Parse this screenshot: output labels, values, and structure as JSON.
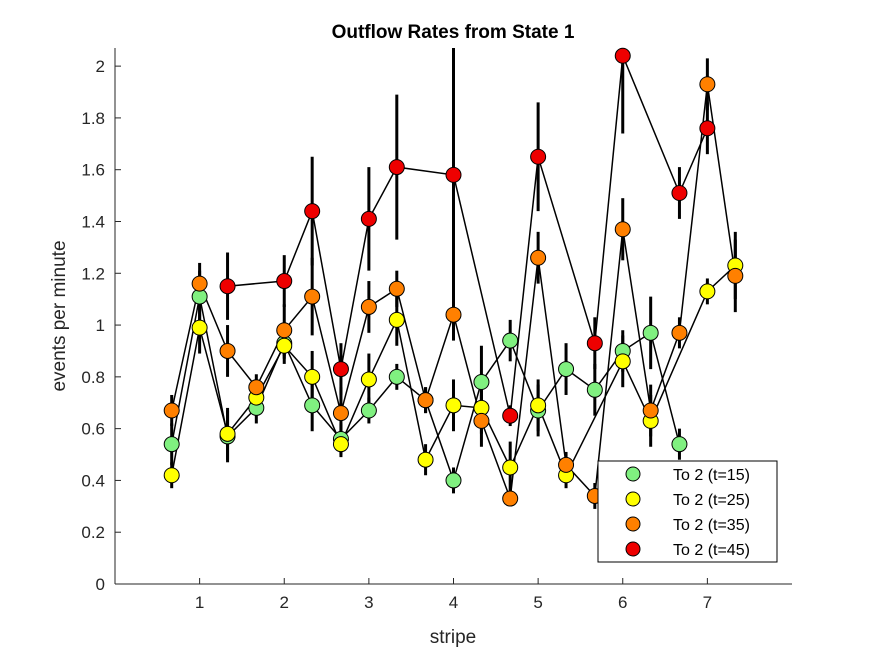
{
  "chart_data": {
    "type": "scatter",
    "title": "Outflow Rates from State 1",
    "xlabel": "stripe",
    "ylabel": "events per minute",
    "xlim": [
      0,
      8
    ],
    "ylim": [
      0,
      2.07
    ],
    "xticks": [
      "1",
      "2",
      "3",
      "4",
      "5",
      "6",
      "7"
    ],
    "yticks": [
      "0",
      "0.2",
      "0.4",
      "0.6",
      "0.8",
      "1",
      "1.2",
      "1.4",
      "1.6",
      "1.8",
      "2"
    ],
    "legend_position": "bottom-right",
    "grid": false,
    "series": [
      {
        "name": "To 2 (t=15)",
        "color": "#80f080",
        "points": [
          {
            "x": 0.67,
            "y": 0.54,
            "err": 0.08
          },
          {
            "x": 1.0,
            "y": 1.11,
            "err": 0.1
          },
          {
            "x": 1.33,
            "y": 0.57,
            "err": 0.1
          },
          {
            "x": 1.67,
            "y": 0.68,
            "err": 0.06
          },
          {
            "x": 2.0,
            "y": 0.93,
            "err": 0.08
          },
          {
            "x": 2.33,
            "y": 0.69,
            "err": 0.1
          },
          {
            "x": 2.67,
            "y": 0.56,
            "err": 0.06
          },
          {
            "x": 3.0,
            "y": 0.67,
            "err": 0.05
          },
          {
            "x": 3.33,
            "y": 0.8,
            "err": 0.05
          },
          {
            "x": 3.67,
            "y": 0.71,
            "err": 0.05
          },
          {
            "x": 4.0,
            "y": 0.4,
            "err": 0.05
          },
          {
            "x": 4.33,
            "y": 0.78,
            "err": 0.14
          },
          {
            "x": 4.67,
            "y": 0.94,
            "err": 0.08
          },
          {
            "x": 5.0,
            "y": 0.67,
            "err": 0.1
          },
          {
            "x": 5.33,
            "y": 0.83,
            "err": 0.1
          },
          {
            "x": 5.67,
            "y": 0.75,
            "err": 0.1
          },
          {
            "x": 6.0,
            "y": 0.9,
            "err": 0.08
          },
          {
            "x": 6.33,
            "y": 0.97,
            "err": 0.14
          },
          {
            "x": 6.67,
            "y": 0.54,
            "err": 0.06
          }
        ]
      },
      {
        "name": "To 2 (t=25)",
        "color": "#ffff00",
        "points": [
          {
            "x": 0.67,
            "y": 0.42,
            "err": 0.05
          },
          {
            "x": 1.0,
            "y": 0.99,
            "err": 0.1
          },
          {
            "x": 1.33,
            "y": 0.58,
            "err": 0.1
          },
          {
            "x": 1.67,
            "y": 0.72,
            "err": 0.05
          },
          {
            "x": 2.0,
            "y": 0.92,
            "err": 0.05
          },
          {
            "x": 2.33,
            "y": 0.8,
            "err": 0.1
          },
          {
            "x": 2.67,
            "y": 0.54,
            "err": 0.05
          },
          {
            "x": 3.0,
            "y": 0.79,
            "err": 0.1
          },
          {
            "x": 3.33,
            "y": 1.02,
            "err": 0.1
          },
          {
            "x": 3.67,
            "y": 0.48,
            "err": 0.06
          },
          {
            "x": 4.0,
            "y": 0.69,
            "err": 0.1
          },
          {
            "x": 4.33,
            "y": 0.68,
            "err": 0.1
          },
          {
            "x": 4.67,
            "y": 0.45,
            "err": 0.1
          },
          {
            "x": 5.0,
            "y": 0.69,
            "err": 0.1
          },
          {
            "x": 5.33,
            "y": 0.42,
            "err": 0.05
          },
          {
            "x": 6.0,
            "y": 0.86,
            "err": 0.1
          },
          {
            "x": 6.33,
            "y": 0.63,
            "err": 0.1
          },
          {
            "x": 7.0,
            "y": 1.13,
            "err": 0.05
          },
          {
            "x": 7.33,
            "y": 1.23,
            "err": 0.13
          }
        ]
      },
      {
        "name": "To 2 (t=35)",
        "color": "#ff8000",
        "points": [
          {
            "x": 0.67,
            "y": 0.67,
            "err": 0.06
          },
          {
            "x": 1.0,
            "y": 1.16,
            "err": 0.08
          },
          {
            "x": 1.33,
            "y": 0.9,
            "err": 0.1
          },
          {
            "x": 1.67,
            "y": 0.76,
            "err": 0.05
          },
          {
            "x": 2.0,
            "y": 0.98,
            "err": 0.1
          },
          {
            "x": 2.33,
            "y": 1.11,
            "err": 0.15
          },
          {
            "x": 2.67,
            "y": 0.66,
            "err": 0.1
          },
          {
            "x": 3.0,
            "y": 1.07,
            "err": 0.1
          },
          {
            "x": 3.33,
            "y": 1.14,
            "err": 0.07
          },
          {
            "x": 3.67,
            "y": 0.71,
            "err": 0.05
          },
          {
            "x": 4.0,
            "y": 1.04,
            "err": 0.1
          },
          {
            "x": 4.33,
            "y": 0.63,
            "err": 0.1
          },
          {
            "x": 4.67,
            "y": 0.33,
            "err": 0.03
          },
          {
            "x": 5.0,
            "y": 1.26,
            "err": 0.1
          },
          {
            "x": 5.33,
            "y": 0.46,
            "err": 0.05
          },
          {
            "x": 5.67,
            "y": 0.34,
            "err": 0.05
          },
          {
            "x": 6.0,
            "y": 1.37,
            "err": 0.12
          },
          {
            "x": 6.33,
            "y": 0.67,
            "err": 0.1
          },
          {
            "x": 6.67,
            "y": 0.97,
            "err": 0.06
          },
          {
            "x": 7.0,
            "y": 1.93,
            "err": 0.1
          },
          {
            "x": 7.33,
            "y": 1.19,
            "err": 0.14
          }
        ]
      },
      {
        "name": "To 2 (t=45)",
        "color": "#ee0000",
        "points": [
          {
            "x": 1.33,
            "y": 1.15,
            "err": 0.13
          },
          {
            "x": 2.0,
            "y": 1.17,
            "err": 0.1
          },
          {
            "x": 2.33,
            "y": 1.44,
            "err": 0.21
          },
          {
            "x": 2.67,
            "y": 0.83,
            "err": 0.1
          },
          {
            "x": 3.0,
            "y": 1.41,
            "err": 0.2
          },
          {
            "x": 3.33,
            "y": 1.61,
            "err": 0.28
          },
          {
            "x": 4.0,
            "y": 1.58,
            "err": 0.5
          },
          {
            "x": 4.67,
            "y": 0.65,
            "err": 0.04
          },
          {
            "x": 5.0,
            "y": 1.65,
            "err": 0.21
          },
          {
            "x": 5.67,
            "y": 0.93,
            "err": 0.1
          },
          {
            "x": 6.0,
            "y": 2.04,
            "err": 0.3
          },
          {
            "x": 6.67,
            "y": 1.51,
            "err": 0.1
          },
          {
            "x": 7.0,
            "y": 1.76,
            "err": 0.1
          }
        ]
      }
    ]
  }
}
